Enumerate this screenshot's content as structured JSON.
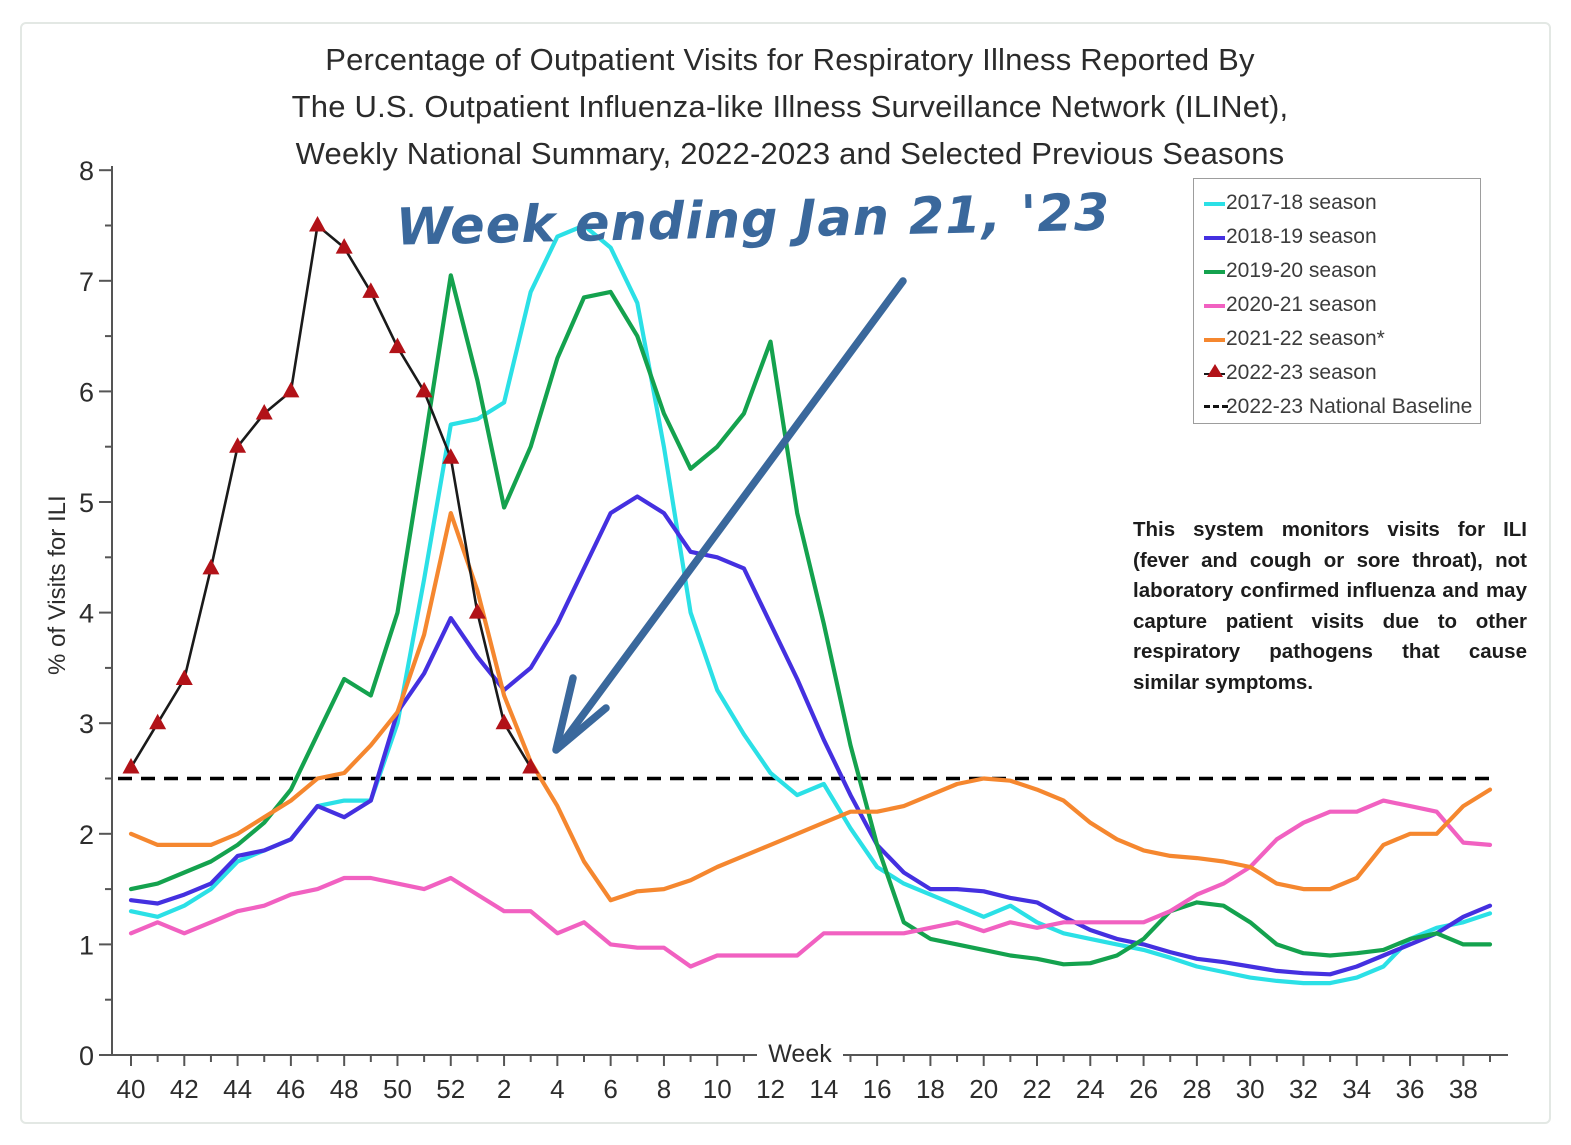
{
  "figure": {
    "title_lines": [
      "Percentage of Outpatient Visits for Respiratory Illness Reported By",
      "The U.S. Outpatient Influenza-like Illness Surveillance Network (ILINet),",
      "Weekly National Summary, 2022-2023 and Selected Previous Seasons"
    ],
    "annotation": {
      "text": "Week ending Jan 21, '23",
      "color": "#3a689c"
    },
    "note": "This system monitors visits for ILI (fever and cough or sore throat), not laboratory confirmed influenza and may capture patient visits due to other respiratory pathogens that cause similar symptoms.",
    "text_color": "#2b2b2b"
  },
  "chart_data": {
    "type": "line",
    "title": "Percentage of Outpatient Visits for Respiratory Illness Reported By The U.S. Outpatient Influenza-like Illness Surveillance Network (ILINet), Weekly National Summary, 2022-2023 and Selected Previous Seasons",
    "xlabel": "Week",
    "ylabel": "% of Visits for ILI",
    "ylim": [
      0,
      8
    ],
    "y_tick_step": 1,
    "y_minor_tick_step": 0.5,
    "grid": false,
    "legend_position": "top-right",
    "national_baseline_value": 2.5,
    "weeks": [
      "40",
      "41",
      "42",
      "43",
      "44",
      "45",
      "46",
      "47",
      "48",
      "49",
      "50",
      "51",
      "52",
      "1",
      "2",
      "3",
      "4",
      "5",
      "6",
      "7",
      "8",
      "9",
      "10",
      "11",
      "12",
      "13",
      "14",
      "15",
      "16",
      "17",
      "18",
      "19",
      "20",
      "21",
      "22",
      "23",
      "24",
      "25",
      "26",
      "27",
      "28",
      "29",
      "30",
      "31",
      "32",
      "33",
      "34",
      "35",
      "36",
      "37",
      "38",
      "39"
    ],
    "x_tick_labels": [
      "40",
      "42",
      "44",
      "46",
      "48",
      "50",
      "52",
      "2",
      "4",
      "6",
      "8",
      "10",
      "12",
      "14",
      "16",
      "18",
      "20",
      "22",
      "24",
      "26",
      "28",
      "30",
      "32",
      "34",
      "36",
      "38"
    ],
    "series": [
      {
        "name": "2017-18 season",
        "color": "#2be0e6",
        "style": "line",
        "values": [
          1.3,
          1.25,
          1.35,
          1.5,
          1.75,
          1.85,
          1.95,
          2.25,
          2.3,
          2.3,
          3.0,
          4.3,
          5.7,
          5.75,
          5.9,
          6.9,
          7.4,
          7.5,
          7.3,
          6.8,
          5.5,
          4.0,
          3.3,
          2.9,
          2.55,
          2.35,
          2.45,
          2.05,
          1.7,
          1.55,
          1.45,
          1.35,
          1.25,
          1.35,
          1.2,
          1.1,
          1.05,
          1.0,
          0.95,
          0.88,
          0.8,
          0.75,
          0.7,
          0.67,
          0.65,
          0.65,
          0.7,
          0.8,
          1.05,
          1.15,
          1.2,
          1.28
        ]
      },
      {
        "name": "2018-19 season",
        "color": "#4430e0",
        "style": "line",
        "values": [
          1.4,
          1.37,
          1.45,
          1.55,
          1.8,
          1.85,
          1.95,
          2.25,
          2.15,
          2.3,
          3.1,
          3.45,
          3.95,
          3.6,
          3.3,
          3.5,
          3.9,
          4.4,
          4.9,
          5.05,
          4.9,
          4.55,
          4.5,
          4.4,
          3.9,
          3.4,
          2.85,
          2.35,
          1.9,
          1.65,
          1.5,
          1.5,
          1.48,
          1.42,
          1.38,
          1.25,
          1.13,
          1.05,
          1.0,
          0.93,
          0.87,
          0.84,
          0.8,
          0.76,
          0.74,
          0.73,
          0.8,
          0.9,
          1.0,
          1.1,
          1.25,
          1.35
        ]
      },
      {
        "name": "2019-20 season",
        "color": "#14a24e",
        "style": "line",
        "values": [
          1.5,
          1.55,
          1.65,
          1.75,
          1.9,
          2.1,
          2.4,
          2.9,
          3.4,
          3.25,
          4.0,
          5.5,
          7.05,
          6.1,
          4.95,
          5.5,
          6.3,
          6.85,
          6.9,
          6.5,
          5.8,
          5.3,
          5.5,
          5.8,
          6.45,
          4.9,
          3.9,
          2.8,
          1.9,
          1.2,
          1.05,
          1.0,
          0.95,
          0.9,
          0.87,
          0.82,
          0.83,
          0.9,
          1.05,
          1.3,
          1.38,
          1.35,
          1.2,
          1.0,
          0.92,
          0.9,
          0.92,
          0.95,
          1.05,
          1.1,
          1.0,
          1.0
        ]
      },
      {
        "name": "2020-21 season",
        "color": "#f161c1",
        "style": "line",
        "values": [
          1.1,
          1.2,
          1.1,
          1.2,
          1.3,
          1.35,
          1.45,
          1.5,
          1.6,
          1.6,
          1.55,
          1.5,
          1.6,
          1.45,
          1.3,
          1.3,
          1.1,
          1.2,
          1.0,
          0.97,
          0.97,
          0.8,
          0.9,
          0.9,
          0.9,
          0.9,
          1.1,
          1.1,
          1.1,
          1.1,
          1.15,
          1.2,
          1.12,
          1.2,
          1.15,
          1.2,
          1.2,
          1.2,
          1.2,
          1.3,
          1.45,
          1.55,
          1.7,
          1.95,
          2.1,
          2.2,
          2.2,
          2.3,
          2.25,
          2.2,
          1.92,
          1.9
        ]
      },
      {
        "name": "2021-22 season*",
        "color": "#f5872f",
        "style": "line",
        "values": [
          2.0,
          1.9,
          1.9,
          1.9,
          2.0,
          2.15,
          2.3,
          2.5,
          2.55,
          2.8,
          3.1,
          3.8,
          4.9,
          4.2,
          3.25,
          2.65,
          2.25,
          1.75,
          1.4,
          1.48,
          1.5,
          1.58,
          1.7,
          1.8,
          1.9,
          2.0,
          2.1,
          2.2,
          2.2,
          2.25,
          2.35,
          2.45,
          2.5,
          2.48,
          2.4,
          2.3,
          2.1,
          1.95,
          1.85,
          1.8,
          1.78,
          1.75,
          1.7,
          1.55,
          1.5,
          1.5,
          1.6,
          1.9,
          2.0,
          2.0,
          2.25,
          2.4
        ]
      },
      {
        "name": "2022-23 season",
        "color": "#1a1a1a",
        "style": "marker-line",
        "marker": "triangle",
        "marker_color": "#b21218",
        "values": [
          2.6,
          3.0,
          3.4,
          4.4,
          5.5,
          5.8,
          6.0,
          7.5,
          7.3,
          6.9,
          6.4,
          6.0,
          5.4,
          4.0,
          3.0,
          2.6,
          null,
          null,
          null,
          null,
          null,
          null,
          null,
          null,
          null,
          null,
          null,
          null,
          null,
          null,
          null,
          null,
          null,
          null,
          null,
          null,
          null,
          null,
          null,
          null,
          null,
          null,
          null,
          null,
          null,
          null,
          null,
          null,
          null,
          null,
          null,
          null
        ]
      },
      {
        "name": "2022-23 National Baseline",
        "color": "#000000",
        "style": "dashed-baseline",
        "baseline_value": 2.5,
        "values": null
      }
    ]
  }
}
